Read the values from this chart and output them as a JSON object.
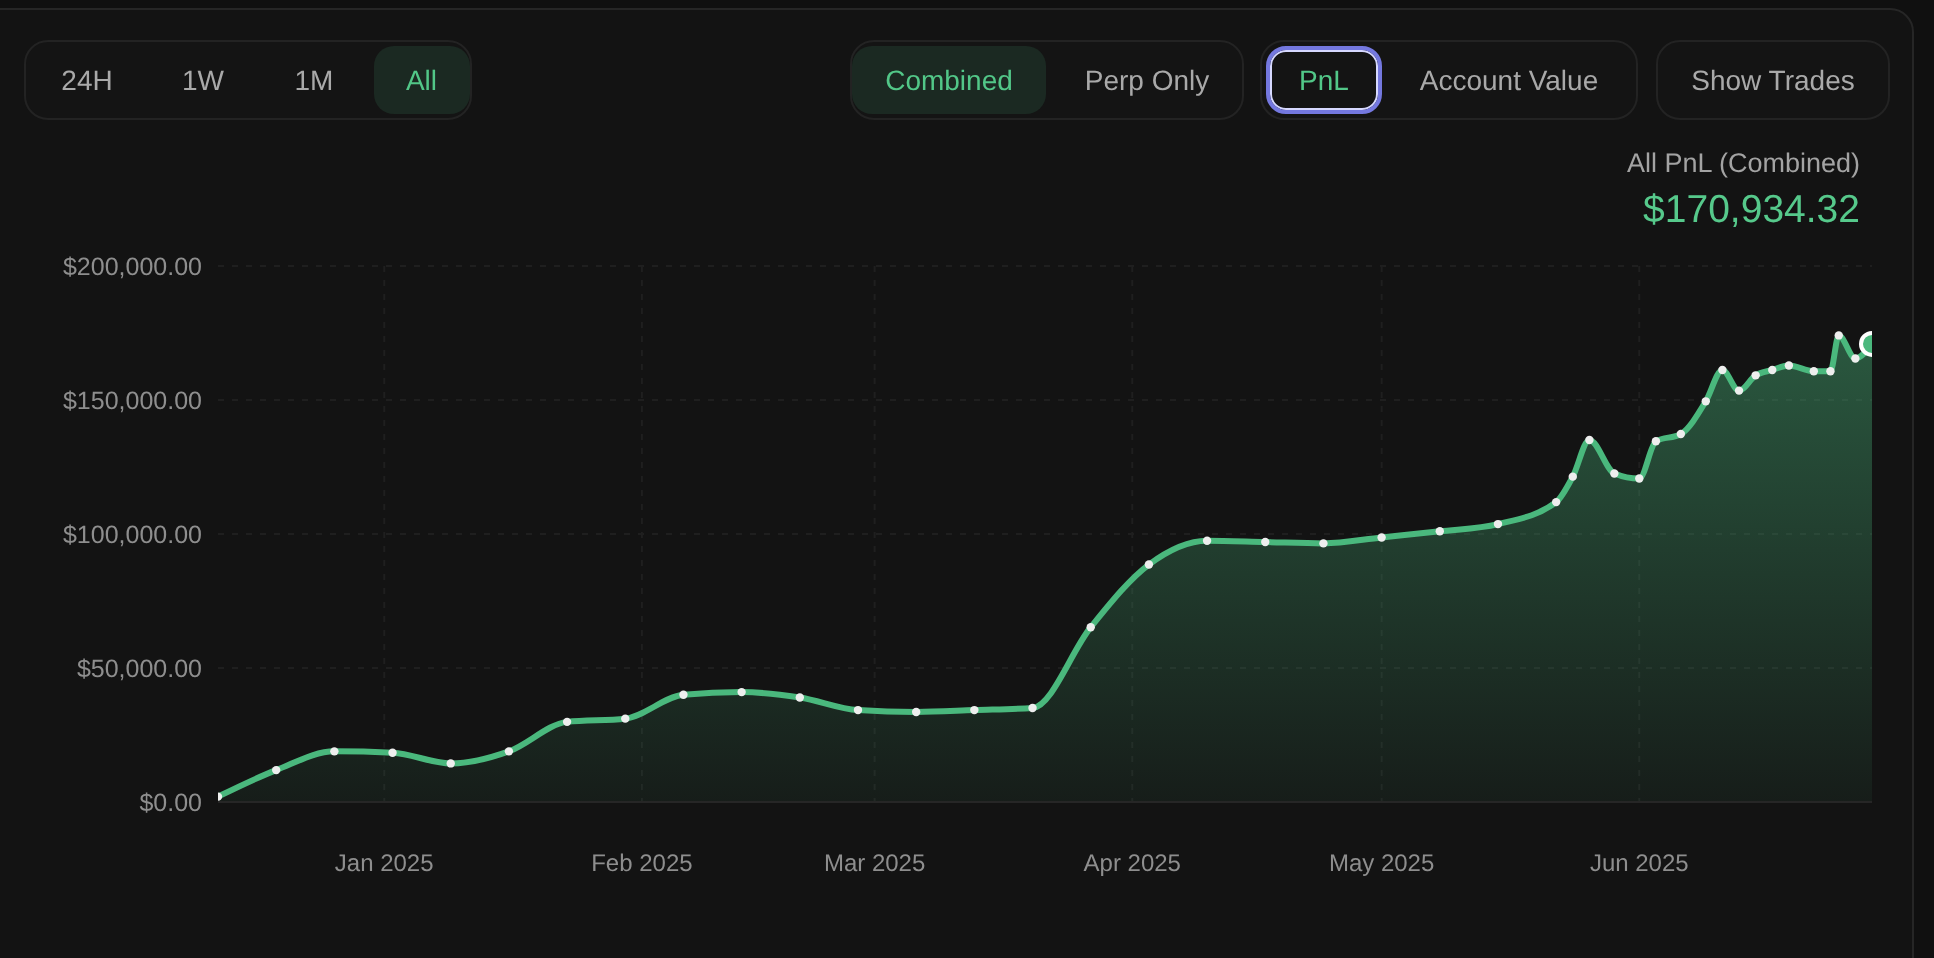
{
  "chart_data": {
    "type": "area",
    "subtitle": "All PnL (Combined)",
    "annotations": [
      "24H",
      "1W",
      "1M",
      "All",
      "Combined",
      "Perp Only",
      "PnL",
      "Account Value",
      "Show Trades",
      "$170,934.32"
    ],
    "x": [
      "2024-12-12",
      "2024-12-19",
      "2024-12-26",
      "2025-01-02",
      "2025-01-09",
      "2025-01-16",
      "2025-01-23",
      "2025-01-30",
      "2025-02-06",
      "2025-02-13",
      "2025-02-20",
      "2025-02-27",
      "2025-03-06",
      "2025-03-13",
      "2025-03-20",
      "2025-03-27",
      "2025-04-03",
      "2025-04-10",
      "2025-04-17",
      "2025-04-24",
      "2025-05-01",
      "2025-05-08",
      "2025-05-15",
      "2025-05-22",
      "2025-05-24",
      "2025-05-26",
      "2025-05-29",
      "2025-06-01",
      "2025-06-03",
      "2025-06-06",
      "2025-06-09",
      "2025-06-11",
      "2025-06-13",
      "2025-06-15",
      "2025-06-17",
      "2025-06-19",
      "2025-06-22",
      "2025-06-24",
      "2025-06-25",
      "2025-06-27",
      "2025-06-29"
    ],
    "values": [
      2000,
      11900,
      18900,
      18400,
      14400,
      18900,
      29900,
      31100,
      40000,
      41000,
      39000,
      34300,
      33600,
      34300,
      35100,
      65200,
      88600,
      97500,
      97000,
      96500,
      98700,
      101000,
      103700,
      111900,
      121400,
      135100,
      122600,
      120700,
      134600,
      137300,
      149500,
      161200,
      153500,
      159200,
      161200,
      162900,
      160700,
      160700,
      174100,
      165500,
      170934.32
    ],
    "color": "#4ab87d",
    "xlim": [
      "2024-12-12",
      "2025-06-29"
    ],
    "xticks": [
      {
        "value": "2025-01-01",
        "label": "Jan 2025"
      },
      {
        "value": "2025-02-01",
        "label": "Feb 2025"
      },
      {
        "value": "2025-03-01",
        "label": "Mar 2025"
      },
      {
        "value": "2025-04-01",
        "label": "Apr 2025"
      },
      {
        "value": "2025-05-01",
        "label": "May 2025"
      },
      {
        "value": "2025-06-01",
        "label": "Jun 2025"
      }
    ],
    "ylim": [
      0,
      200000
    ],
    "yticks": [
      {
        "value": 0,
        "label": "$0.00"
      },
      {
        "value": 50000,
        "label": "$50,000.00"
      },
      {
        "value": 100000,
        "label": "$100,000.00"
      },
      {
        "value": 150000,
        "label": "$150,000.00"
      },
      {
        "value": 200000,
        "label": "$200,000.00"
      }
    ],
    "grid": true,
    "marker": "circle",
    "line_style": "solid"
  }
}
